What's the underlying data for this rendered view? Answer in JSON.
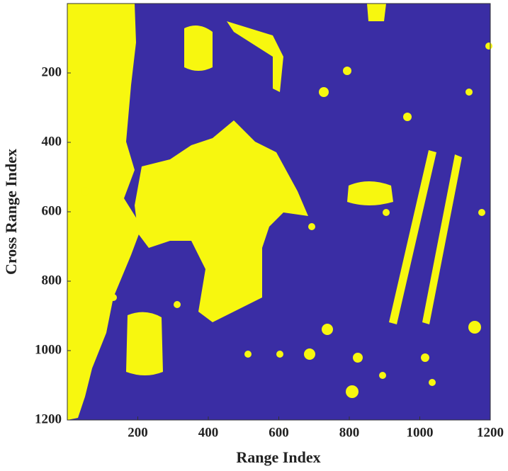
{
  "chart_data": {
    "type": "image",
    "xlabel": "Range Index",
    "ylabel": "Cross Range Index",
    "xlim": [
      0,
      1200
    ],
    "ylim": [
      1200,
      0
    ],
    "xticks": [
      200,
      400,
      600,
      800,
      1000,
      1200
    ],
    "yticks": [
      200,
      400,
      600,
      800,
      1000,
      1200
    ],
    "colors": [
      "#3a2da4",
      "#f7f70f"
    ]
  }
}
